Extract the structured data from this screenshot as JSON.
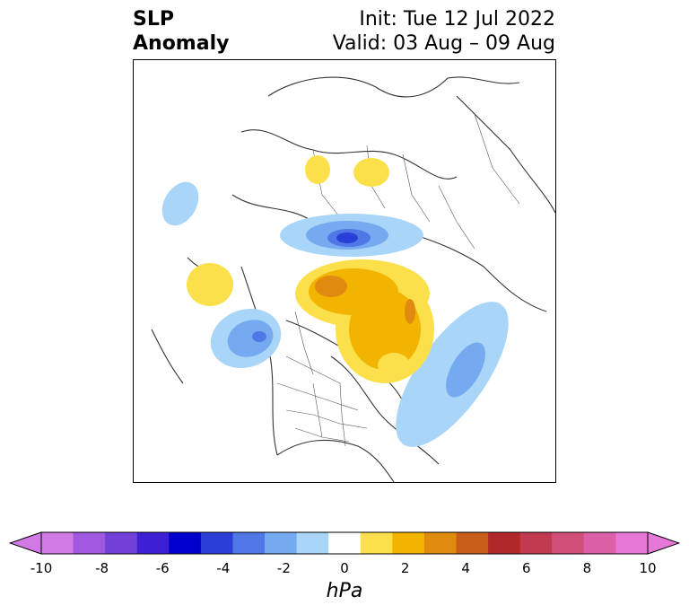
{
  "header": {
    "variable_line1": "SLP",
    "variable_line2": "Anomaly",
    "init": "Init: Tue 12 Jul 2022",
    "valid": "Valid: 03 Aug – 09 Aug"
  },
  "colorbar": {
    "units": "hPa",
    "ticks": [
      "-10",
      "-8",
      "-6",
      "-4",
      "-2",
      "0",
      "2",
      "4",
      "6",
      "8",
      "10"
    ],
    "min": -10,
    "max": 10,
    "extend": "both",
    "colors": [
      "#d17ae6",
      "#a158e0",
      "#7040d8",
      "#3d20d4",
      "#0000cc",
      "#2a3ed8",
      "#4f78e6",
      "#76aaf0",
      "#a9d6f8",
      "#ffffff",
      "#fbe04c",
      "#f3b400",
      "#e08a10",
      "#c85e18",
      "#b02828",
      "#c23a50",
      "#d0507a",
      "#dc60a8",
      "#e878d8"
    ]
  }
}
